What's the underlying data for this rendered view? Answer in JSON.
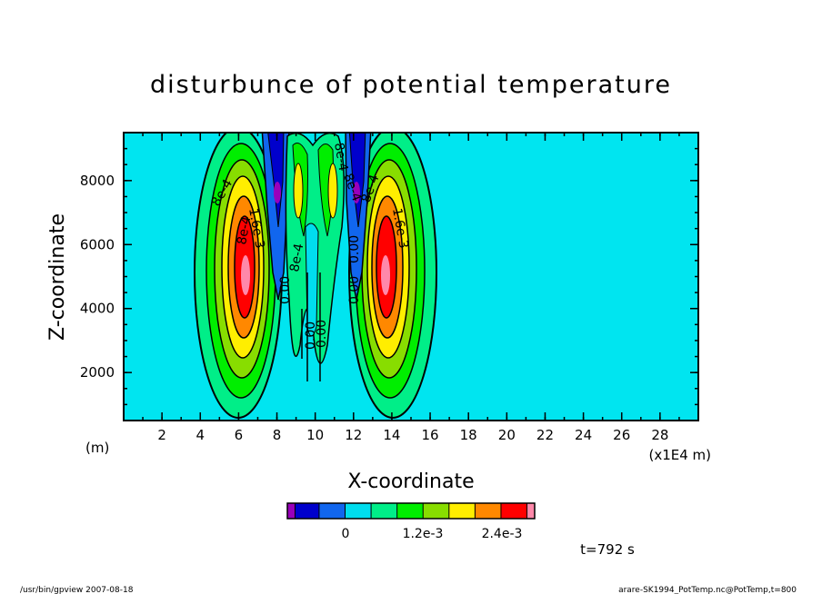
{
  "chart_data": {
    "type": "heatmap",
    "title": "disturbunce of potential temperature",
    "xlabel": "X-coordinate",
    "ylabel": "Z-coordinate",
    "x_unit_left": "(m)",
    "x_unit_right": "(x1E4 m)",
    "x_ticks": [
      "2",
      "4",
      "6",
      "8",
      "10",
      "12",
      "14",
      "16",
      "18",
      "20",
      "22",
      "24",
      "26",
      "28"
    ],
    "x_tick_values": [
      2,
      4,
      6,
      8,
      10,
      12,
      14,
      16,
      18,
      20,
      22,
      24,
      26,
      28
    ],
    "y_ticks": [
      "2000",
      "4000",
      "6000",
      "8000"
    ],
    "y_tick_values": [
      2000,
      4000,
      6000,
      8000
    ],
    "xlim": [
      0,
      30
    ],
    "ylim": [
      500,
      9500
    ],
    "contour_labels": [
      "8e-4",
      "8e-4",
      "1.6e-3",
      "1.6e-3",
      "8e-4",
      "0.00",
      "0.00",
      "8e-4",
      "0.00",
      "0.00",
      "8e-4",
      "8e-4",
      "0.00"
    ],
    "colorbar": {
      "colors": [
        "#9900bb",
        "#0000cc",
        "#1166ee",
        "#00ddee",
        "#00ee88",
        "#00ee00",
        "#88dd00",
        "#ffee00",
        "#ff8800",
        "#ff0000",
        "#ff88aa"
      ],
      "labels": [
        "0",
        "1.2e-3",
        "2.4e-3"
      ]
    },
    "background_color": "#00e5f0"
  },
  "time_label": "t=792 s",
  "footer_left": "/usr/bin/gpview   2007-08-18",
  "footer_right": "arare-SK1994_PotTemp.nc@PotTemp,t=800"
}
